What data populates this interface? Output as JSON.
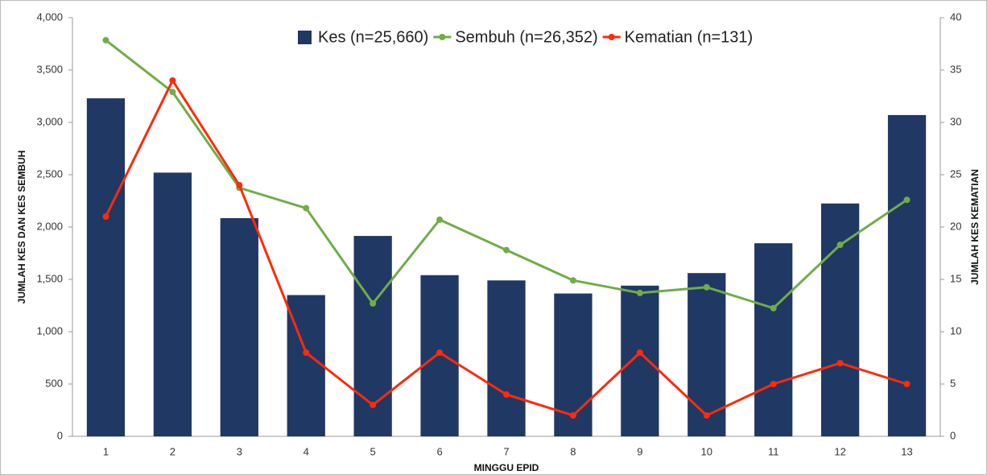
{
  "chart_data": {
    "type": "bar",
    "y_label": "JUMLAH KES DAN KES SEMBUH",
    "y2_label": "JUMLAH KES KEMATIAN",
    "x_label": "MINGGU EPID",
    "categories": [
      "1",
      "2",
      "3",
      "4",
      "5",
      "6",
      "7",
      "8",
      "9",
      "10",
      "11",
      "12",
      "13"
    ],
    "series": [
      {
        "name": "Kes (n=25,660)",
        "type": "bar",
        "color": "#203864",
        "values": [
          3230,
          2520,
          2085,
          1350,
          1915,
          1540,
          1490,
          1365,
          1440,
          1560,
          1845,
          2225,
          3070
        ]
      },
      {
        "name": "Sembuh (n=26,352)",
        "type": "line",
        "color": "#70ad47",
        "values": [
          3785,
          3290,
          2375,
          2180,
          1270,
          2070,
          1780,
          1490,
          1370,
          1425,
          1225,
          1830,
          2260
        ]
      },
      {
        "name": "Kematian (n=131)",
        "type": "line",
        "axis": "y2",
        "color": "#ff2a0a",
        "values": [
          21,
          34,
          24,
          8,
          3,
          8,
          4,
          2,
          8,
          2,
          5,
          7,
          5
        ]
      }
    ],
    "ylim": [
      0,
      4000
    ],
    "yticks": [
      0,
      500,
      {
        "value": 1000,
        "label": "1,000"
      },
      {
        "value": 1500,
        "label": "1,500"
      },
      {
        "value": 2000,
        "label": "2,000"
      },
      {
        "value": 2500,
        "label": "2,500"
      },
      {
        "value": 3000,
        "label": "3,000"
      },
      {
        "value": 3500,
        "label": "3,500"
      },
      {
        "value": 4000,
        "label": "4,000"
      }
    ],
    "y2lim": [
      0,
      40
    ],
    "y2ticks": [
      0,
      5,
      10,
      15,
      20,
      25,
      30,
      35,
      40
    ],
    "grid": false
  }
}
